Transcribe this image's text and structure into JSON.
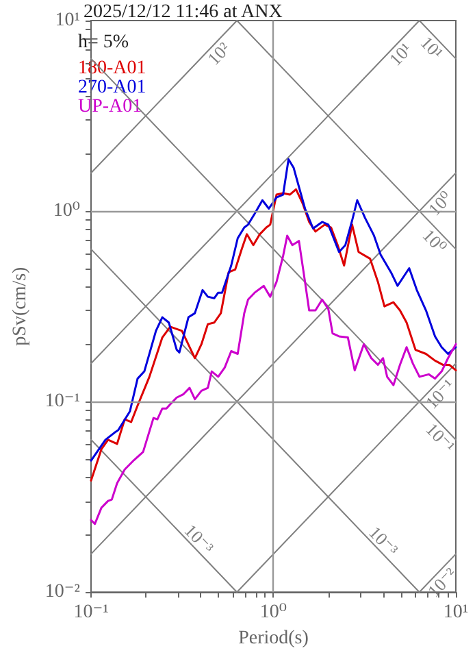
{
  "chart_data": {
    "type": "line",
    "title": "2025/12/12 11:46 at ANX",
    "xlabel": "Period(s)",
    "ylabel": "pSv(cm/s)",
    "annotations": [
      "h= 5%",
      {
        "text": "10²",
        "x": 0.459,
        "y": 7.27
      },
      {
        "text": "10¹",
        "x": 4.55,
        "y": 7.21
      },
      {
        "text": "10¹",
        "x": 8.07,
        "y": 7.82
      },
      {
        "text": "10⁰",
        "x": 7.5,
        "y": 1.189
      },
      {
        "text": "10⁰",
        "x": 8.36,
        "y": 0.755
      },
      {
        "text": "10⁻¹",
        "x": 7.5,
        "y": 0.1189
      },
      {
        "text": "10⁻¹",
        "x": 9.0,
        "y": 0.0701
      },
      {
        "text": "10⁻²",
        "x": 7.69,
        "y": 0.01219
      },
      {
        "text": "10⁻³",
        "x": 0.359,
        "y": 0.01758
      },
      {
        "text": "10⁻³",
        "x": 3.68,
        "y": 0.01715
      }
    ],
    "log": "xy",
    "grid": true,
    "legend": "top left",
    "marker": "none",
    "xlim": [
      0.1,
      10
    ],
    "ylim": [
      0.01,
      10
    ],
    "xticks": [
      {
        "value": 0.1,
        "label": "10⁻¹"
      },
      {
        "value": 0.2,
        "label": null
      },
      {
        "value": 0.3,
        "label": null
      },
      {
        "value": 0.4,
        "label": null
      },
      {
        "value": 0.5,
        "label": null
      },
      {
        "value": 0.6,
        "label": null
      },
      {
        "value": 0.7,
        "label": null
      },
      {
        "value": 0.8,
        "label": null
      },
      {
        "value": 0.9,
        "label": null
      },
      {
        "value": 1,
        "label": "10⁰"
      },
      {
        "value": 2,
        "label": null
      },
      {
        "value": 3,
        "label": null
      },
      {
        "value": 4,
        "label": null
      },
      {
        "value": 5,
        "label": null
      },
      {
        "value": 6,
        "label": null
      },
      {
        "value": 7,
        "label": null
      },
      {
        "value": 8,
        "label": null
      },
      {
        "value": 9,
        "label": null
      },
      {
        "value": 10,
        "label": "10¹"
      }
    ],
    "yticks": [
      {
        "value": 0.01,
        "label": "10⁻²"
      },
      {
        "value": 0.02,
        "label": null
      },
      {
        "value": 0.03,
        "label": null
      },
      {
        "value": 0.04,
        "label": null
      },
      {
        "value": 0.05,
        "label": null
      },
      {
        "value": 0.06,
        "label": null
      },
      {
        "value": 0.07,
        "label": null
      },
      {
        "value": 0.08,
        "label": null
      },
      {
        "value": 0.09,
        "label": null
      },
      {
        "value": 0.1,
        "label": "10⁻¹"
      },
      {
        "value": 0.2,
        "label": null
      },
      {
        "value": 0.3,
        "label": null
      },
      {
        "value": 0.4,
        "label": null
      },
      {
        "value": 0.5,
        "label": null
      },
      {
        "value": 0.6,
        "label": null
      },
      {
        "value": 0.7,
        "label": null
      },
      {
        "value": 0.8,
        "label": null
      },
      {
        "value": 0.9,
        "label": null
      },
      {
        "value": 1,
        "label": "10⁰"
      },
      {
        "value": 2,
        "label": null
      },
      {
        "value": 3,
        "label": null
      },
      {
        "value": 4,
        "label": null
      },
      {
        "value": 5,
        "label": null
      },
      {
        "value": 6,
        "label": null
      },
      {
        "value": 7,
        "label": null
      },
      {
        "value": 8,
        "label": null
      },
      {
        "value": 9,
        "label": null
      },
      {
        "value": 10,
        "label": "10¹"
      }
    ],
    "series": [
      {
        "name": "180-A01",
        "color": "#dd0000",
        "x": [
          0.1,
          0.114,
          0.124,
          0.139,
          0.153,
          0.166,
          0.18,
          0.209,
          0.246,
          0.272,
          0.315,
          0.371,
          0.403,
          0.437,
          0.474,
          0.515,
          0.568,
          0.617,
          0.67,
          0.715,
          0.776,
          0.842,
          0.914,
          0.96,
          1.04,
          1.13,
          1.23,
          1.33,
          1.45,
          1.57,
          1.7,
          1.91,
          2.07,
          2.25,
          2.44,
          2.7,
          2.93,
          3.39,
          3.74,
          4.06,
          4.55,
          4.94,
          5.37,
          6.01,
          6.86,
          7.69,
          8.49,
          9.2,
          10
        ],
        "values": [
          0.0385,
          0.0562,
          0.063,
          0.06,
          0.0807,
          0.0781,
          0.0952,
          0.135,
          0.217,
          0.247,
          0.235,
          0.169,
          0.2,
          0.255,
          0.26,
          0.291,
          0.477,
          0.493,
          0.631,
          0.756,
          0.663,
          0.756,
          0.82,
          0.849,
          1.22,
          1.24,
          1.22,
          1.3,
          1.09,
          0.877,
          0.781,
          0.849,
          0.82,
          0.663,
          0.518,
          0.849,
          0.61,
          0.562,
          0.425,
          0.316,
          0.332,
          0.301,
          0.26,
          0.187,
          0.178,
          0.164,
          0.156,
          0.156,
          0.146
        ]
      },
      {
        "name": "270-A01",
        "color": "#0000dd",
        "x": [
          0.1,
          0.12,
          0.134,
          0.141,
          0.1635,
          0.18,
          0.196,
          0.227,
          0.246,
          0.267,
          0.295,
          0.305,
          0.342,
          0.371,
          0.409,
          0.437,
          0.474,
          0.498,
          0.523,
          0.587,
          0.637,
          0.692,
          0.726,
          0.789,
          0.87,
          0.944,
          1.04,
          1.13,
          1.21,
          1.29,
          1.38,
          1.49,
          1.65,
          1.85,
          2.0,
          2.29,
          2.48,
          2.7,
          2.88,
          3.18,
          3.56,
          3.87,
          4.41,
          4.79,
          5.55,
          6.11,
          6.86,
          7.69,
          8.36,
          9.06,
          10
        ],
        "values": [
          0.049,
          0.063,
          0.0685,
          0.0708,
          0.089,
          0.132,
          0.144,
          0.235,
          0.277,
          0.26,
          0.187,
          0.181,
          0.277,
          0.291,
          0.385,
          0.355,
          0.349,
          0.373,
          0.373,
          0.518,
          0.72,
          0.82,
          0.849,
          0.968,
          1.14,
          1.03,
          1.18,
          1.22,
          1.87,
          1.69,
          1.34,
          1.03,
          0.81,
          0.877,
          0.849,
          0.61,
          0.663,
          0.891,
          1.14,
          0.92,
          0.743,
          0.59,
          0.477,
          0.405,
          0.501,
          0.385,
          0.301,
          0.22,
          0.193,
          0.178,
          0.193
        ]
      },
      {
        "name": "UP-A01",
        "color": "#cc00cc",
        "x": [
          0.1,
          0.105,
          0.114,
          0.124,
          0.13,
          0.139,
          0.153,
          0.172,
          0.193,
          0.22,
          0.231,
          0.246,
          0.259,
          0.272,
          0.295,
          0.32,
          0.347,
          0.371,
          0.403,
          0.437,
          0.459,
          0.498,
          0.541,
          0.587,
          0.637,
          0.692,
          0.726,
          0.789,
          0.885,
          0.96,
          1.04,
          1.13,
          1.19,
          1.27,
          1.38,
          1.49,
          1.57,
          1.7,
          1.85,
          2.0,
          2.11,
          2.29,
          2.56,
          2.79,
          3.13,
          3.44,
          3.74,
          3.99,
          4.2,
          4.55,
          4.94,
          5.37,
          5.82,
          6.32,
          7.1,
          7.69,
          8.36,
          9.06,
          10
        ],
        "values": [
          0.0239,
          0.0228,
          0.0277,
          0.0301,
          0.0306,
          0.0373,
          0.044,
          0.0493,
          0.0544,
          0.082,
          0.0807,
          0.092,
          0.092,
          0.0968,
          0.105,
          0.109,
          0.118,
          0.103,
          0.114,
          0.118,
          0.144,
          0.135,
          0.151,
          0.184,
          0.178,
          0.291,
          0.343,
          0.373,
          0.405,
          0.355,
          0.425,
          0.581,
          0.743,
          0.663,
          0.697,
          0.425,
          0.301,
          0.301,
          0.343,
          0.306,
          0.228,
          0.22,
          0.217,
          0.146,
          0.2,
          0.169,
          0.156,
          0.169,
          0.135,
          0.122,
          0.156,
          0.193,
          0.158,
          0.135,
          0.139,
          0.132,
          0.144,
          0.169,
          0.2
        ]
      },
      {
        "color": "#808080",
        "line_style": "solid",
        "x": [
          0.1,
          0.631
        ],
        "values": [
          1.585,
          10
        ]
      },
      {
        "color": "#808080",
        "line_style": "solid",
        "x": [
          0.1,
          6.31
        ],
        "values": [
          0.1585,
          10
        ]
      },
      {
        "color": "#808080",
        "line_style": "solid",
        "x": [
          0.1,
          10
        ],
        "values": [
          0.01585,
          1.585
        ]
      },
      {
        "color": "#808080",
        "line_style": "solid",
        "x": [
          0.631,
          10
        ],
        "values": [
          0.01,
          0.1585
        ]
      },
      {
        "color": "#808080",
        "line_style": "solid",
        "x": [
          6.31,
          10
        ],
        "values": [
          0.01,
          0.01585
        ]
      },
      {
        "color": "#808080",
        "line_style": "solid",
        "x": [
          6.31,
          10
        ],
        "values": [
          10,
          6.31
        ]
      },
      {
        "color": "#808080",
        "line_style": "solid",
        "x": [
          0.631,
          10
        ],
        "values": [
          10,
          0.631
        ]
      },
      {
        "color": "#808080",
        "line_style": "solid",
        "x": [
          0.1,
          10
        ],
        "values": [
          6.31,
          0.0631
        ]
      },
      {
        "color": "#808080",
        "line_style": "solid",
        "x": [
          0.1,
          6.31
        ],
        "values": [
          0.631,
          0.01
        ]
      },
      {
        "color": "#808080",
        "line_style": "solid",
        "x": [
          0.1,
          0.631
        ],
        "values": [
          0.0631,
          0.01
        ]
      }
    ]
  }
}
